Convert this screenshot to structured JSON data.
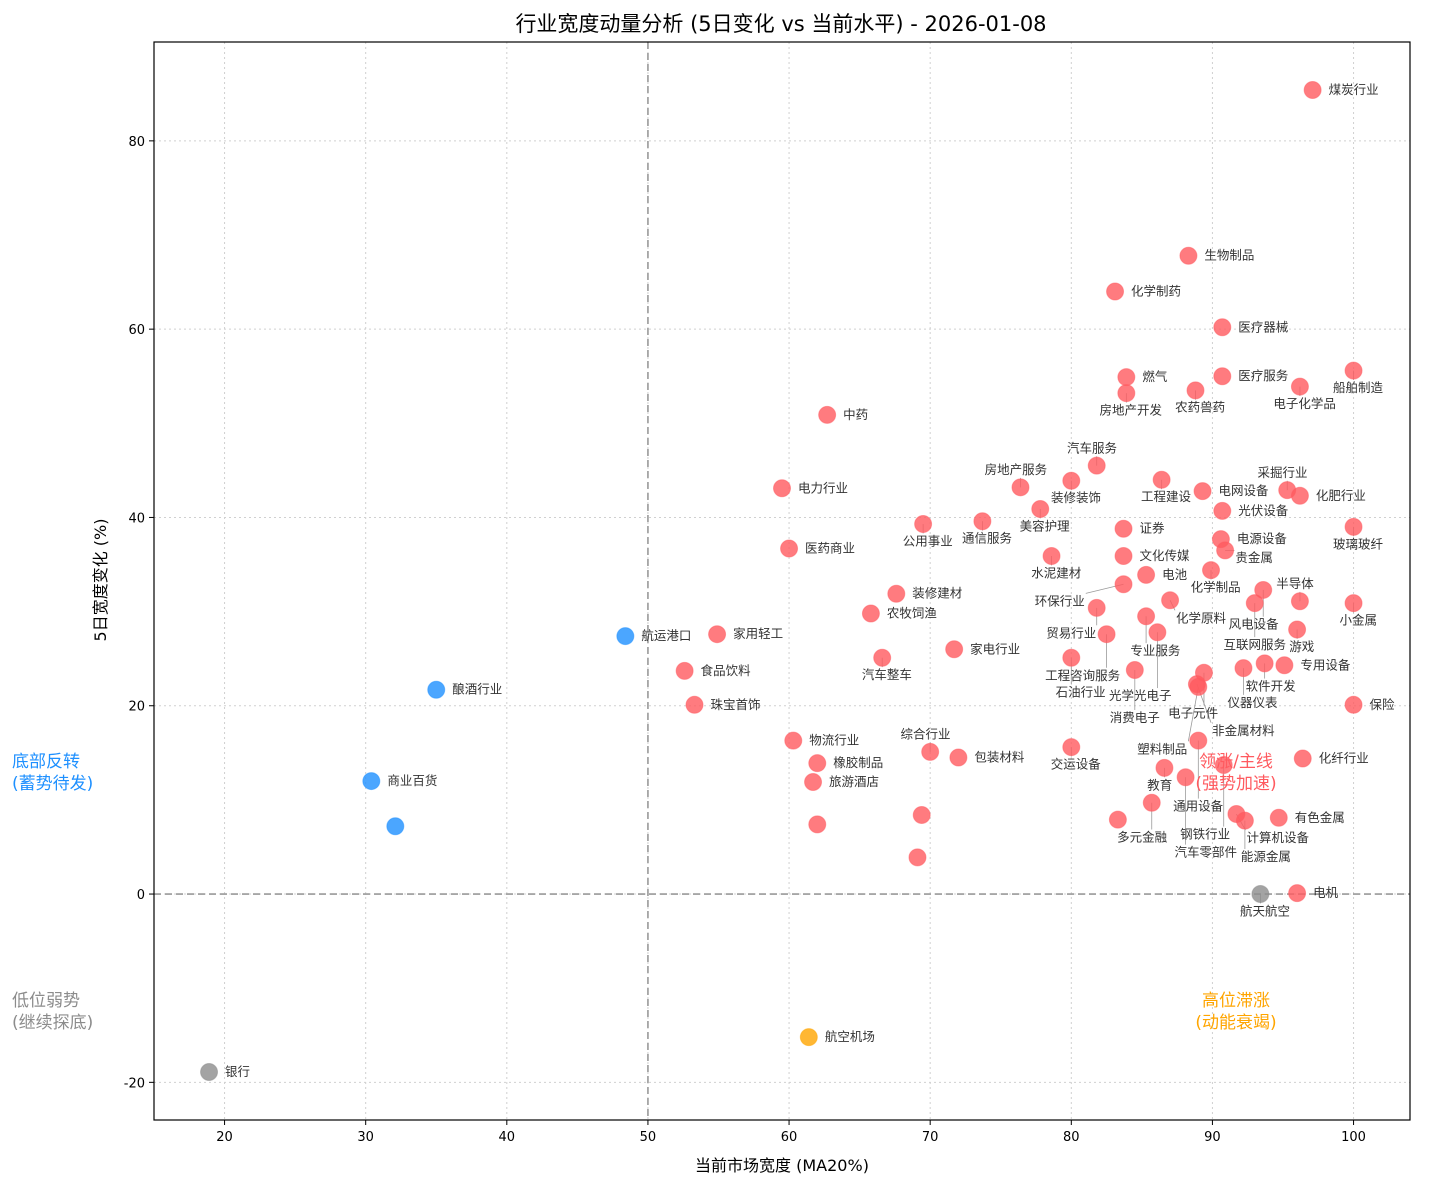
{
  "chart_data": {
    "type": "scatter",
    "title": "行业宽度动量分析 (5日变化 vs 当前水平) - 2026-01-08",
    "xlabel": "当前市场宽度 (MA20%)",
    "ylabel": "5日宽度变化 (%)",
    "xlim": [
      15,
      104
    ],
    "ylim": [
      -24,
      90.5
    ],
    "xticks": [
      20,
      30,
      40,
      50,
      60,
      70,
      80,
      90,
      100
    ],
    "yticks": [
      -20,
      0,
      20,
      40,
      60,
      80
    ],
    "grid": true,
    "reference_lines": {
      "x": 50,
      "y": 0
    },
    "colors": {
      "leading": "#ff5a5f",
      "reversal": "#1e90ff",
      "weak": "#8c8c8c",
      "stagnant": "#ffa500"
    },
    "quadrant_labels": {
      "leading": [
        "领涨/主线",
        "(强势加速)"
      ],
      "reversal": [
        "底部反转",
        "(蓄势待发)"
      ],
      "weak": [
        "低位弱势",
        "(继续探底)"
      ],
      "stagnant": [
        "高位滞涨",
        "(动能衰竭)"
      ]
    },
    "points": [
      {
        "label": "煤炭行业",
        "x": 97.1,
        "y": 85.4
      },
      {
        "label": "生物制品",
        "x": 88.3,
        "y": 67.8
      },
      {
        "label": "化学制药",
        "x": 83.1,
        "y": 64.0
      },
      {
        "label": "医疗器械",
        "x": 90.7,
        "y": 60.2
      },
      {
        "label": "船舶制造",
        "x": 100,
        "y": 55.6
      },
      {
        "label": "燃气",
        "x": 83.9,
        "y": 54.9
      },
      {
        "label": "医疗服务",
        "x": 90.7,
        "y": 55.0
      },
      {
        "label": "电子化学品",
        "x": 96.2,
        "y": 53.9
      },
      {
        "label": "房地产开发",
        "x": 83.9,
        "y": 53.2
      },
      {
        "label": "农药兽药",
        "x": 88.8,
        "y": 53.5
      },
      {
        "label": "中药",
        "x": 62.7,
        "y": 50.9
      },
      {
        "label": "汽车服务",
        "x": 81.8,
        "y": 45.5
      },
      {
        "label": "装修装饰",
        "x": 80.0,
        "y": 43.9
      },
      {
        "label": "工程建设",
        "x": 86.4,
        "y": 44.0
      },
      {
        "label": "房地产服务",
        "x": 76.4,
        "y": 43.2
      },
      {
        "label": "电力行业",
        "x": 59.5,
        "y": 43.1
      },
      {
        "label": "电网设备",
        "x": 89.3,
        "y": 42.8
      },
      {
        "label": "采掘行业",
        "x": 95.3,
        "y": 42.9
      },
      {
        "label": "化肥行业",
        "x": 96.2,
        "y": 42.3
      },
      {
        "label": "美容护理",
        "x": 77.8,
        "y": 40.9
      },
      {
        "label": "光伏设备",
        "x": 90.7,
        "y": 40.7
      },
      {
        "label": "公用事业",
        "x": 69.5,
        "y": 39.3
      },
      {
        "label": "通信服务",
        "x": 73.7,
        "y": 39.6
      },
      {
        "label": "证券",
        "x": 83.7,
        "y": 38.8
      },
      {
        "label": "玻璃玻纤",
        "x": 100,
        "y": 39.0
      },
      {
        "label": "电源设备",
        "x": 90.6,
        "y": 37.7
      },
      {
        "label": "医药商业",
        "x": 60.0,
        "y": 36.7
      },
      {
        "label": "贵金属",
        "x": 90.9,
        "y": 36.5
      },
      {
        "label": "水泥建材",
        "x": 78.6,
        "y": 35.9
      },
      {
        "label": "文化传媒",
        "x": 83.7,
        "y": 35.9
      },
      {
        "label": "化学制品",
        "x": 89.9,
        "y": 34.4
      },
      {
        "label": "电池",
        "x": 85.3,
        "y": 33.9
      },
      {
        "label": "环保行业",
        "x": 83.7,
        "y": 32.9
      },
      {
        "label": "风电设备",
        "x": 93.6,
        "y": 32.3
      },
      {
        "label": "装修建材",
        "x": 67.6,
        "y": 31.9
      },
      {
        "label": "化学原料",
        "x": 87.0,
        "y": 31.2
      },
      {
        "label": "互联网服务",
        "x": 93.0,
        "y": 30.9
      },
      {
        "label": "半导体",
        "x": 96.2,
        "y": 31.1
      },
      {
        "label": "小金属",
        "x": 100,
        "y": 30.9
      },
      {
        "label": "贸易行业",
        "x": 81.8,
        "y": 30.4
      },
      {
        "label": "农牧饲渔",
        "x": 65.8,
        "y": 29.8
      },
      {
        "label": "专业服务",
        "x": 85.3,
        "y": 29.5
      },
      {
        "label": "工程咨询服务",
        "x": 82.5,
        "y": 27.6
      },
      {
        "label": "光学光电子",
        "x": 86.1,
        "y": 27.8
      },
      {
        "label": "游戏",
        "x": 96.0,
        "y": 28.1
      },
      {
        "label": "航运港口",
        "x": 48.4,
        "y": 27.4
      },
      {
        "label": "家用轻工",
        "x": 54.9,
        "y": 27.6
      },
      {
        "label": "家电行业",
        "x": 71.7,
        "y": 26.0
      },
      {
        "label": "汽车整车",
        "x": 66.6,
        "y": 25.1
      },
      {
        "label": "石油行业",
        "x": 80.0,
        "y": 25.1
      },
      {
        "label": "软件开发",
        "x": 93.7,
        "y": 24.5
      },
      {
        "label": "专用设备",
        "x": 95.1,
        "y": 24.3
      },
      {
        "label": "仪器仪表",
        "x": 92.2,
        "y": 24.0
      },
      {
        "label": "电子元件",
        "x": 89.4,
        "y": 23.5
      },
      {
        "label": "消费电子",
        "x": 84.5,
        "y": 23.8
      },
      {
        "label": "食品饮料",
        "x": 52.6,
        "y": 23.7
      },
      {
        "label": "非金属材料",
        "x": 88.9,
        "y": 22.3
      },
      {
        "label": "塑料制品",
        "x": 89.0,
        "y": 22.0
      },
      {
        "label": "酿酒行业",
        "x": 35.0,
        "y": 21.7
      },
      {
        "label": "珠宝首饰",
        "x": 53.3,
        "y": 20.1
      },
      {
        "label": "保险",
        "x": 100,
        "y": 20.1
      },
      {
        "label": "物流行业",
        "x": 60.3,
        "y": 16.3
      },
      {
        "label": "通用设备",
        "x": 89.0,
        "y": 16.3
      },
      {
        "label": "交运设备",
        "x": 80.0,
        "y": 15.6
      },
      {
        "label": "综合行业",
        "x": 70.0,
        "y": 15.1
      },
      {
        "label": "包装材料",
        "x": 72.0,
        "y": 14.5
      },
      {
        "label": "橡胶制品",
        "x": 62.0,
        "y": 13.9
      },
      {
        "label": "化纤行业",
        "x": 96.4,
        "y": 14.4
      },
      {
        "label": "钢铁行业",
        "x": 90.8,
        "y": 13.7
      },
      {
        "label": "教育",
        "x": 86.6,
        "y": 13.4
      },
      {
        "label": "汽车零部件",
        "x": 88.1,
        "y": 12.4
      },
      {
        "label": "商业百货",
        "x": 30.4,
        "y": 12.0
      },
      {
        "label": "旅游酒店",
        "x": 61.7,
        "y": 11.9
      },
      {
        "label": "多元金融",
        "x": 85.7,
        "y": 9.7
      },
      {
        "label": "计算机设备",
        "x": 91.7,
        "y": 8.5
      },
      {
        "label": "能源金属",
        "x": 92.3,
        "y": 7.8
      },
      {
        "label": "有色金属",
        "x": 94.7,
        "y": 8.1
      },
      {
        "label": "",
        "x": 32.1,
        "y": 7.2
      },
      {
        "label": "",
        "x": 62.0,
        "y": 7.4
      },
      {
        "label": "",
        "x": 69.4,
        "y": 8.4
      },
      {
        "label": "",
        "x": 69.1,
        "y": 3.9
      },
      {
        "label": "",
        "x": 83.3,
        "y": 7.9
      },
      {
        "label": "航天航空",
        "x": 93.4,
        "y": 0
      },
      {
        "label": "电机",
        "x": 96.0,
        "y": 0.1
      },
      {
        "label": "航空机场",
        "x": 61.4,
        "y": -15.2
      },
      {
        "label": "银行",
        "x": 18.9,
        "y": -18.9
      }
    ]
  }
}
